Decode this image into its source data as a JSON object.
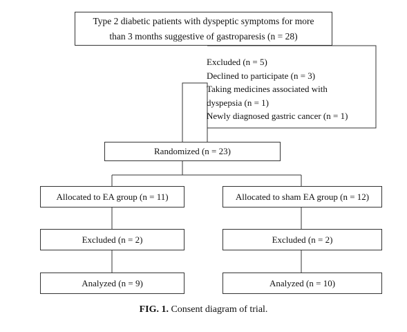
{
  "diagram": {
    "enrollment": {
      "line1": "Type 2 diabetic patients with dyspeptic symptoms for more",
      "line2": "than 3 months suggestive of gastroparesis (n = 28)"
    },
    "excluded_top": {
      "lines": [
        "Excluded (n = 5)",
        "Declined to participate (n = 3)",
        "Taking medicines associated with",
        "dyspepsia (n = 1)",
        "Newly diagnosed gastric cancer (n = 1)"
      ]
    },
    "randomized": "Randomized (n = 23)",
    "left_arm": {
      "allocated": "Allocated to EA group (n = 11)",
      "excluded": "Excluded (n = 2)",
      "analyzed": "Analyzed (n = 9)"
    },
    "right_arm": {
      "allocated": "Allocated to sham EA group (n = 12)",
      "excluded": "Excluded (n = 2)",
      "analyzed": "Analyzed (n = 10)"
    }
  },
  "caption": {
    "label": "FIG. 1.",
    "text": "Consent diagram of trial."
  }
}
